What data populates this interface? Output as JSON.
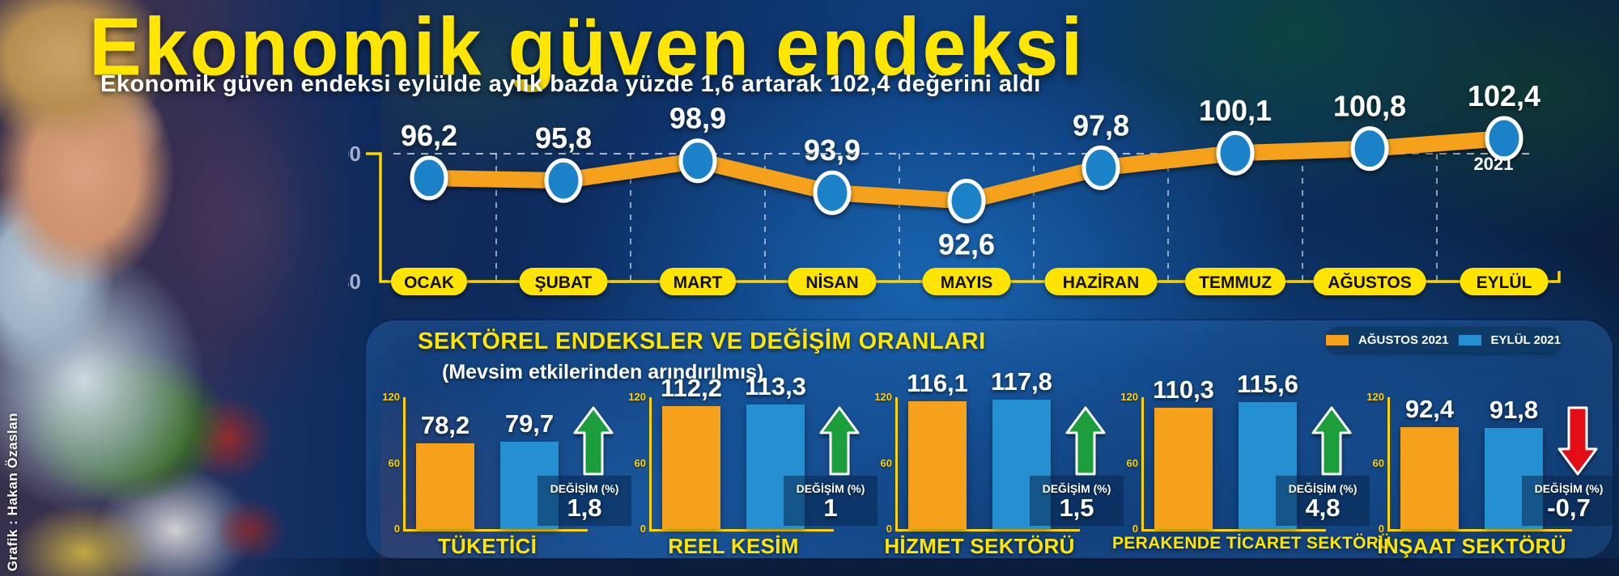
{
  "header": {
    "title": "Ekonomik güven endeksi",
    "subtitle": "Ekonomik güven endeksi eylülde aylık bazda yüzde 1,6 artarak 102,4 değerini aldı"
  },
  "credit": "Grafik : Hakan Özaslan",
  "colors": {
    "accent_yellow": "#ffe600",
    "axis_yellow": "#ffd400",
    "orange_series": "#f5a11b",
    "blue_series": "#2490d2",
    "dot_blue": "#1e82c8",
    "green_up": "#1f9e3d",
    "red_down": "#e30b17",
    "navy_box": "#0d3a66",
    "gray_axis_label": "#a7aec9"
  },
  "chart_data": [
    {
      "id": "monthly-confidence-index",
      "type": "line",
      "title": "Ekonomik güven endeksi",
      "x": [
        "OCAK",
        "ŞUBAT",
        "MART",
        "NİSAN",
        "MAYIS",
        "HAZİRAN",
        "TEMMUZ",
        "AĞUSTOS",
        "EYLÜL"
      ],
      "values": [
        96.2,
        95.8,
        98.9,
        93.9,
        92.6,
        97.8,
        100.1,
        100.8,
        102.4
      ],
      "value_labels": [
        "96,2",
        "95,8",
        "98,9",
        "93,9",
        "92,6",
        "97,8",
        "100,1",
        "100,8",
        "102,4"
      ],
      "labels_below": [
        false,
        false,
        false,
        false,
        true,
        false,
        false,
        false,
        false
      ],
      "ylim": [
        80,
        105
      ],
      "yticks": [
        100,
        80
      ],
      "ytick_labels": [
        "100",
        "80"
      ],
      "gridline_at": 100,
      "grid": "dashed vertical between months + dashed horizontal at 100",
      "annotation": "2021",
      "xlabel": "",
      "ylabel": ""
    },
    {
      "id": "sector-indices",
      "type": "bar",
      "title": "SEKTÖREL ENDEKSLER VE DEĞİŞİM ORANLARI",
      "subtitle": "(Mevsim etkilerinden arındırılmış)",
      "legend_position": "top-right",
      "legend": [
        {
          "label": "AĞUSTOS 2021",
          "color": "#f5a11b"
        },
        {
          "label": "EYLÜL 2021",
          "color": "#2490d2"
        }
      ],
      "change_label": "DEĞİŞİM (%)",
      "ylim": [
        0,
        120
      ],
      "yticks": [
        120,
        60,
        0
      ],
      "ytick_labels": [
        "120",
        "60",
        "0"
      ],
      "groups": [
        {
          "category": "TÜKETİCİ",
          "values": [
            78.2,
            79.7
          ],
          "value_labels": [
            "78,2",
            "79,7"
          ],
          "change": "1,8",
          "direction": "up"
        },
        {
          "category": "REEL KESİM",
          "values": [
            112.2,
            113.3
          ],
          "value_labels": [
            "112,2",
            "113,3"
          ],
          "change": "1",
          "direction": "up"
        },
        {
          "category": "HİZMET SEKTÖRÜ",
          "values": [
            116.1,
            117.8
          ],
          "value_labels": [
            "116,1",
            "117,8"
          ],
          "change": "1,5",
          "direction": "up"
        },
        {
          "category": "PERAKENDE TİCARET SEKTÖRÜ",
          "values": [
            110.3,
            115.6
          ],
          "value_labels": [
            "110,3",
            "115,6"
          ],
          "change": "4,8",
          "direction": "up"
        },
        {
          "category": "İNŞAAT SEKTÖRÜ",
          "values": [
            92.4,
            91.8
          ],
          "value_labels": [
            "92,4",
            "91,8"
          ],
          "change": "-0,7",
          "direction": "down"
        }
      ]
    }
  ]
}
